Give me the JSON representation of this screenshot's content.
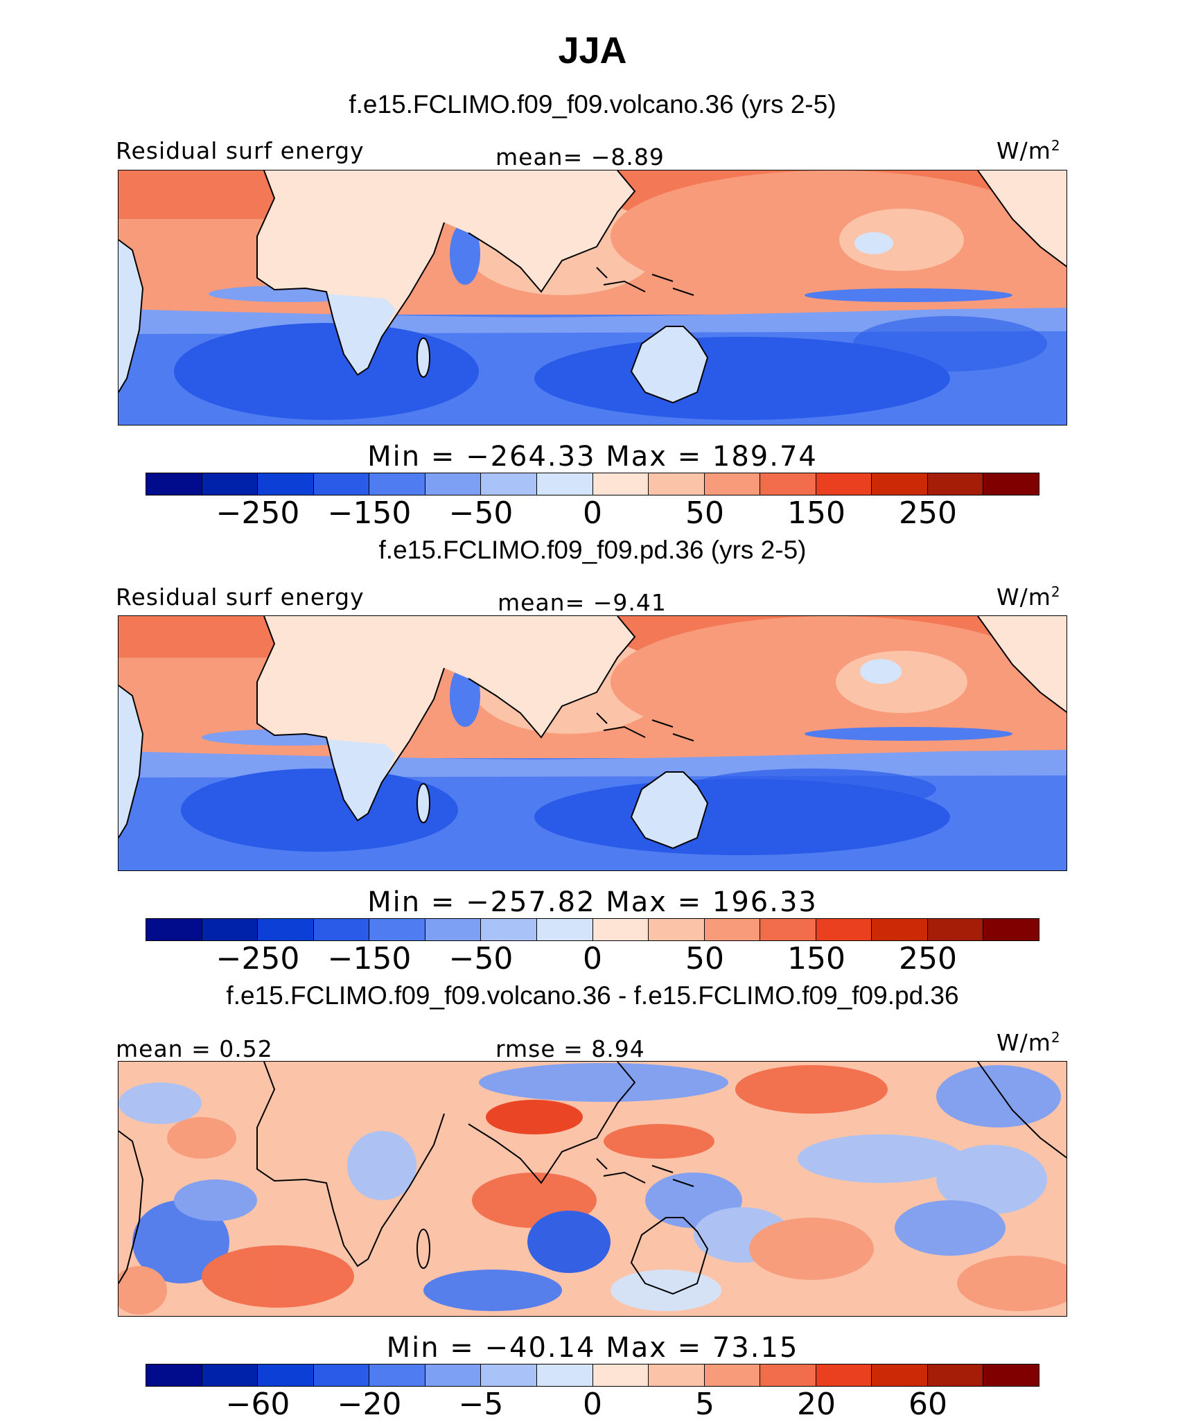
{
  "figure": {
    "title": "JJA",
    "panels": [
      {
        "run_title": "f.e15.FCLIMO.f09_f09.volcano.36 (yrs 2-5)",
        "left_label": "Residual surf energy",
        "center_label": "mean=   −8.89",
        "unit": "W/m",
        "unit_exp": "2",
        "minmax": "Min = −264.33 Max = 189.74"
      },
      {
        "run_title": "f.e15.FCLIMO.f09_f09.pd.36 (yrs 2-5)",
        "left_label": "Residual surf energy",
        "center_label": "mean=   −9.41",
        "unit": "W/m",
        "unit_exp": "2",
        "minmax": "Min = −257.82 Max = 196.33"
      },
      {
        "run_title": "f.e15.FCLIMO.f09_f09.volcano.36 - f.e15.FCLIMO.f09_f09.pd.36",
        "left_label": "mean =   0.52",
        "center_label": "rmse =   8.94",
        "unit": "W/m",
        "unit_exp": "2",
        "minmax": "Min = −40.14 Max =  73.15"
      }
    ]
  },
  "colorbars": {
    "colors": [
      "#000c8c",
      "#0022aa",
      "#0b3fd6",
      "#2a5be8",
      "#4f7cf0",
      "#7ea0f4",
      "#a9c2f7",
      "#d4e4fa",
      "#fde4d4",
      "#fbc3a8",
      "#f79b7a",
      "#f26d4b",
      "#ea4020",
      "#cc2a06",
      "#a51c07",
      "#800000"
    ],
    "absolute_ticks": [
      "−250",
      "−150",
      "−50",
      "0",
      "50",
      "150",
      "250"
    ],
    "difference_ticks": [
      "−60",
      "−20",
      "−5",
      "0",
      "5",
      "20",
      "60"
    ]
  }
}
